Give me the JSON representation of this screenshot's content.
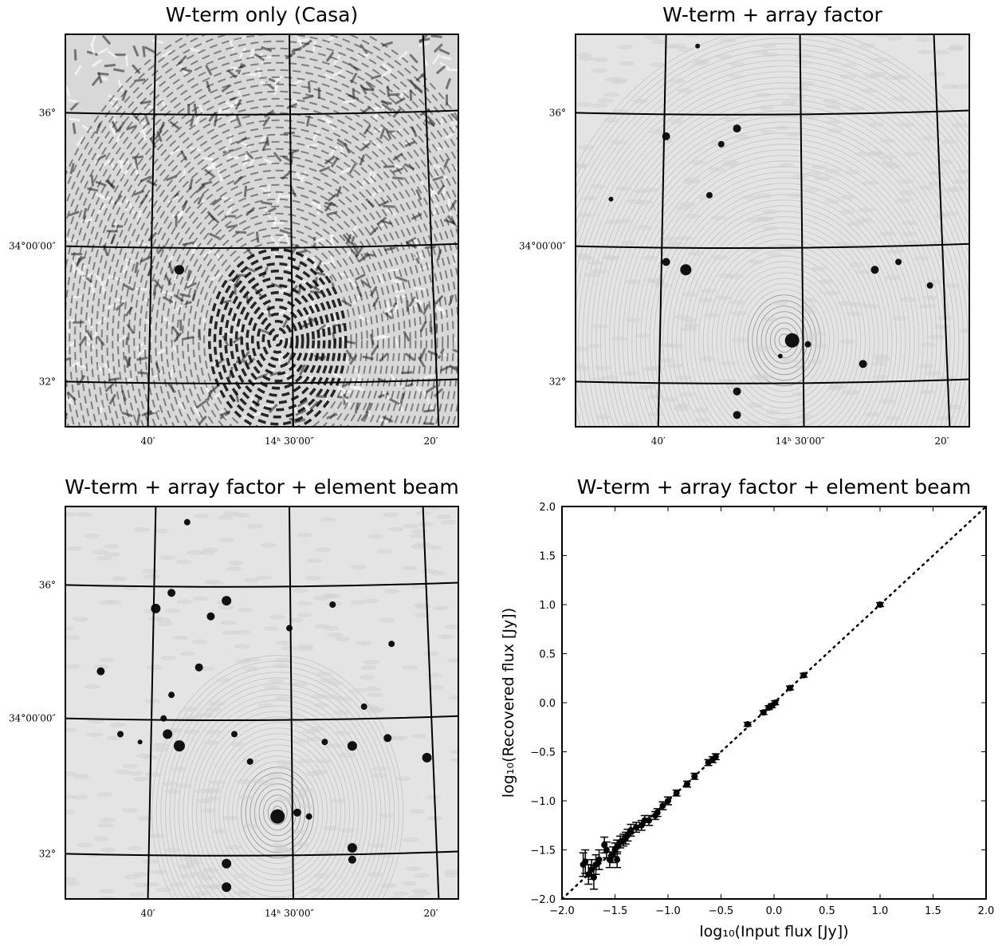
{
  "chart_data": [
    {
      "type": "image",
      "title": "W-term only (Casa)",
      "style": "fringes",
      "xtick_labels": [
        "40′",
        "14ʰ 30′00″",
        "20′"
      ],
      "ytick_labels": [
        "36°",
        "34°00′00″",
        "32°"
      ]
    },
    {
      "type": "image",
      "title": "W-term + array factor",
      "style": "sources",
      "xtick_labels": [
        "40′",
        "14ʰ 30′00″",
        "20′"
      ],
      "ytick_labels": [
        "36°",
        "34°00′00″",
        "32°"
      ]
    },
    {
      "type": "image",
      "title": "W-term + array factor + element beam",
      "style": "field",
      "xtick_labels": [
        "40′",
        "14ʰ 30′00″",
        "20′"
      ],
      "ytick_labels": [
        "36°",
        "34°00′00″",
        "32°"
      ]
    },
    {
      "type": "scatter",
      "title": "W-term + array factor + element beam",
      "xlabel": "log₁₀(Input flux [Jy])",
      "ylabel": "log₁₀(Recovered flux [Jy])",
      "xlim": [
        -2,
        2
      ],
      "ylim": [
        -2,
        2
      ],
      "xticks": [
        {
          "value": -2,
          "label": "−2.0"
        },
        {
          "value": -1.5,
          "label": "−1.5"
        },
        {
          "value": -1,
          "label": "−1.0"
        },
        {
          "value": -0.5,
          "label": "−0.5"
        },
        {
          "value": 0,
          "label": "0.0"
        },
        0.5,
        {
          "value": 1,
          "label": "1.0"
        },
        1.5,
        {
          "value": 2,
          "label": "2.0"
        }
      ],
      "yticks": [
        {
          "value": -2,
          "label": "−2.0"
        },
        {
          "value": -1.5,
          "label": "−1.5"
        },
        {
          "value": -1,
          "label": "−1.0"
        },
        {
          "value": -0.5,
          "label": "−0.5"
        },
        {
          "value": 0,
          "label": "0.0"
        },
        0.5,
        {
          "value": 1,
          "label": "1.0"
        },
        1.5,
        {
          "value": 2,
          "label": "2.0"
        }
      ],
      "identity_line": true,
      "color": "#000000",
      "x": [
        1.0,
        0.28,
        0.15,
        0.01,
        -0.02,
        -0.05,
        -0.1,
        -0.25,
        -0.55,
        -0.58,
        -0.62,
        -0.75,
        -0.82,
        -0.92,
        -1.0,
        -1.05,
        -1.1,
        -1.12,
        -1.18,
        -1.22,
        -1.25,
        -1.3,
        -1.35,
        -1.38,
        -1.42,
        -1.45,
        -1.48,
        -1.5,
        -1.52,
        -1.55,
        -1.58,
        -1.6,
        -1.65,
        -1.68,
        -1.72,
        -1.75,
        -1.78,
        -1.8,
        -1.7,
        -1.4,
        -1.48
      ],
      "y": [
        1.0,
        0.28,
        0.15,
        0.0,
        -0.03,
        -0.05,
        -0.1,
        -0.22,
        -0.55,
        -0.58,
        -0.61,
        -0.75,
        -0.83,
        -0.92,
        -1.0,
        -1.05,
        -1.12,
        -1.15,
        -1.2,
        -1.2,
        -1.25,
        -1.27,
        -1.3,
        -1.35,
        -1.4,
        -1.42,
        -1.47,
        -1.5,
        -1.55,
        -1.6,
        -1.5,
        -1.45,
        -1.6,
        -1.65,
        -1.7,
        -1.75,
        -1.62,
        -1.65,
        -1.78,
        -1.38,
        -1.6
      ],
      "yerr": [
        0.02,
        0.02,
        0.02,
        0.02,
        0.02,
        0.02,
        0.02,
        0.02,
        0.03,
        0.03,
        0.03,
        0.03,
        0.03,
        0.03,
        0.04,
        0.04,
        0.04,
        0.04,
        0.05,
        0.05,
        0.05,
        0.05,
        0.06,
        0.06,
        0.06,
        0.06,
        0.07,
        0.07,
        0.08,
        0.08,
        0.08,
        0.08,
        0.1,
        0.1,
        0.1,
        0.1,
        0.12,
        0.12,
        0.12,
        0.06,
        0.08
      ]
    }
  ]
}
